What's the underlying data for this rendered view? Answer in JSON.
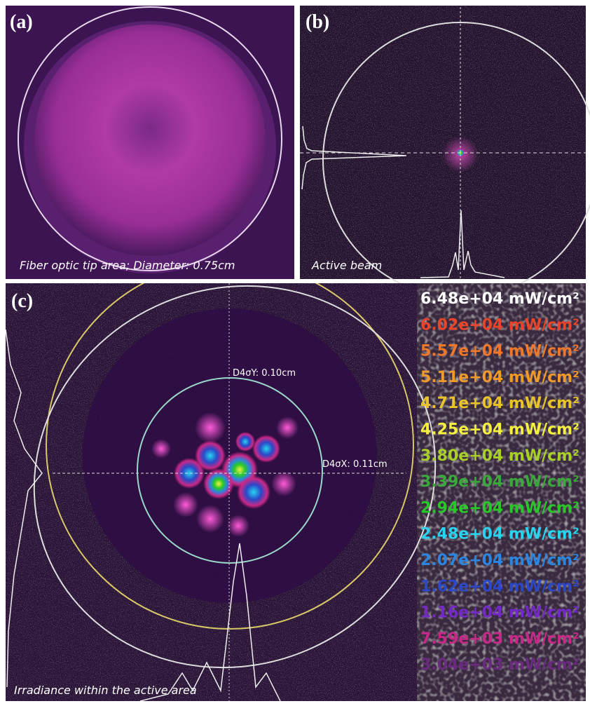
{
  "panels": [
    {
      "label": "(a)",
      "caption": "Fiber optic tip area; Diameter: 0.75cm"
    },
    {
      "label": "(b)",
      "caption": "Active beam"
    },
    {
      "label": "(c)",
      "caption": "Irradiance within the active area",
      "annotations": [
        "D4σY: 0.10cm",
        "D4σX: 0.11cm"
      ]
    }
  ],
  "legend": [
    {
      "label": "6.48e+04 mW/cm²",
      "color": "#ffffff"
    },
    {
      "label": "6.02e+04 mW/cm²",
      "color": "#e8442a"
    },
    {
      "label": "5.57e+04 mW/cm²",
      "color": "#f07828"
    },
    {
      "label": "5.11e+04 mW/cm²",
      "color": "#f09a2a"
    },
    {
      "label": "4.71e+04 mW/cm²",
      "color": "#e8c428"
    },
    {
      "label": "4.25e+04 mW/cm²",
      "color": "#f4f040"
    },
    {
      "label": "3.80e+04 mW/cm²",
      "color": "#a8d028"
    },
    {
      "label": "3.39e+04 mW/cm²",
      "color": "#3aa83a"
    },
    {
      "label": "2.94e+04 mW/cm²",
      "color": "#28c828"
    },
    {
      "label": "2.48e+04 mW/cm²",
      "color": "#28d4f0"
    },
    {
      "label": "2.07e+04 mW/cm²",
      "color": "#2a86e0"
    },
    {
      "label": "1.62e+04 mW/cm²",
      "color": "#2a48c8"
    },
    {
      "label": "1.16e+04 mW/cm²",
      "color": "#7428c8"
    },
    {
      "label": "7.59e+03 mW/cm²",
      "color": "#c82888"
    },
    {
      "label": "3.04e+03 mW/cm²",
      "color": "#6a2a80"
    }
  ]
}
